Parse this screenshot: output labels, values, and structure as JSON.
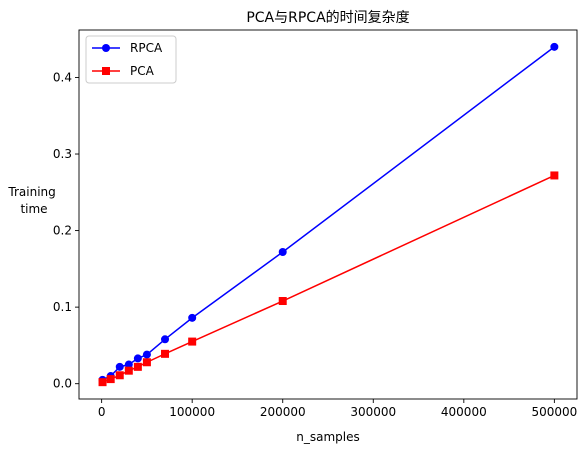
{
  "chart_data": {
    "type": "line",
    "title": "PCA与RPCA的时间复杂度",
    "xlabel": "n_samples",
    "ylabel": [
      "Training",
      "time"
    ],
    "xlim": [
      -25000,
      525000
    ],
    "ylim": [
      -0.02,
      0.462
    ],
    "xticks": [
      {
        "value": 0,
        "label": "0"
      },
      {
        "value": 100000,
        "label": "100000"
      },
      {
        "value": 200000,
        "label": "200000"
      },
      {
        "value": 300000,
        "label": "300000"
      },
      {
        "value": 400000,
        "label": "400000"
      },
      {
        "value": 500000,
        "label": "500000"
      }
    ],
    "yticks": [
      {
        "value": 0.0,
        "label": "0.0"
      },
      {
        "value": 0.1,
        "label": "0.1"
      },
      {
        "value": 0.2,
        "label": "0.2"
      },
      {
        "value": 0.3,
        "label": "0.3"
      },
      {
        "value": 0.4,
        "label": "0.4"
      }
    ],
    "grid": false,
    "legend_position": "top-left",
    "series": [
      {
        "name": "RPCA",
        "color": "#0000ff",
        "marker": "circle",
        "points": [
          [
            1000,
            0.005
          ],
          [
            10000,
            0.01
          ],
          [
            20000,
            0.022
          ],
          [
            30000,
            0.025
          ],
          [
            40000,
            0.033
          ],
          [
            50000,
            0.038
          ],
          [
            70000,
            0.058
          ],
          [
            100000,
            0.086
          ],
          [
            200000,
            0.172
          ],
          [
            500000,
            0.44
          ]
        ]
      },
      {
        "name": "PCA",
        "color": "#ff0000",
        "marker": "square",
        "points": [
          [
            1000,
            0.002
          ],
          [
            10000,
            0.006
          ],
          [
            20000,
            0.011
          ],
          [
            30000,
            0.017
          ],
          [
            40000,
            0.022
          ],
          [
            50000,
            0.028
          ],
          [
            70000,
            0.039
          ],
          [
            100000,
            0.055
          ],
          [
            200000,
            0.108
          ],
          [
            500000,
            0.272
          ]
        ]
      }
    ]
  }
}
